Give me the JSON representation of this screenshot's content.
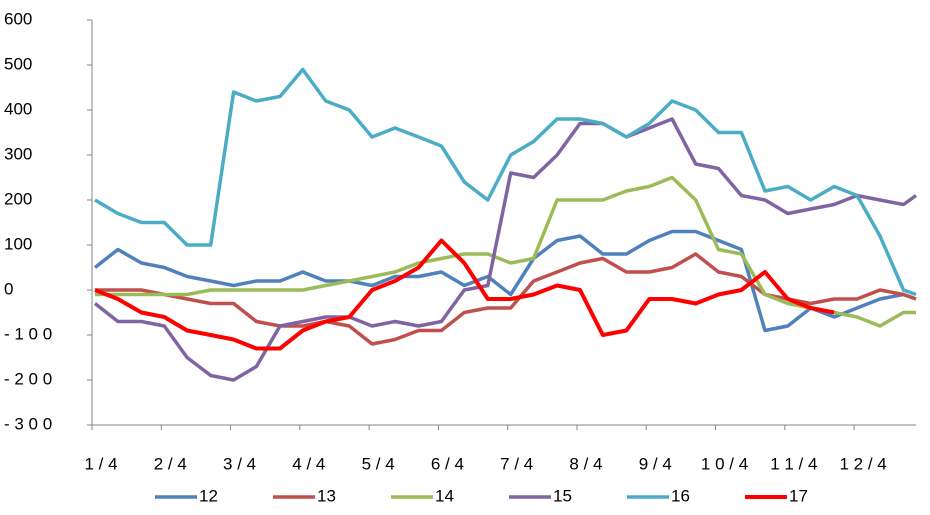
{
  "chart_data": {
    "type": "line",
    "x": [
      1,
      1.33,
      1.67,
      2,
      2.33,
      2.67,
      3,
      3.33,
      3.67,
      4,
      4.33,
      4.67,
      5,
      5.33,
      5.67,
      6,
      6.33,
      6.67,
      7,
      7.33,
      7.67,
      8,
      8.33,
      8.67,
      9,
      9.33,
      9.67,
      10,
      10.33,
      10.67,
      11,
      11.33,
      11.67,
      12,
      12.33,
      12.67,
      12.85
    ],
    "xlim": [
      1,
      12.85
    ],
    "xticks": [
      {
        "value": 1,
        "label": "1 / 4"
      },
      {
        "value": 2,
        "label": "2 / 4"
      },
      {
        "value": 3,
        "label": "3 / 4"
      },
      {
        "value": 4,
        "label": "4 / 4"
      },
      {
        "value": 5,
        "label": "5 / 4"
      },
      {
        "value": 6,
        "label": "6 / 4"
      },
      {
        "value": 7,
        "label": "7 / 4"
      },
      {
        "value": 8,
        "label": "8 / 4"
      },
      {
        "value": 9,
        "label": "9 / 4"
      },
      {
        "value": 10,
        "label": "1 0 / 4"
      },
      {
        "value": 11,
        "label": "1 1 / 4"
      },
      {
        "value": 12,
        "label": "1 2 / 4"
      }
    ],
    "ylim": [
      -300,
      600
    ],
    "yticks": [
      {
        "value": -300,
        "label": "- 3 0 0"
      },
      {
        "value": -200,
        "label": "- 2 0 0"
      },
      {
        "value": -100,
        "label": "- 1 0 0"
      },
      0,
      100,
      200,
      300,
      400,
      500,
      600
    ],
    "series": [
      {
        "name": "12",
        "color": "#4f81bd",
        "values": [
          50,
          90,
          60,
          50,
          30,
          20,
          10,
          20,
          20,
          40,
          20,
          20,
          10,
          30,
          30,
          40,
          10,
          30,
          -10,
          70,
          110,
          120,
          80,
          80,
          110,
          130,
          130,
          110,
          90,
          -90,
          -80,
          -40,
          -60,
          -40,
          -20,
          -10,
          -20
        ]
      },
      {
        "name": "13",
        "color": "#c0504d",
        "values": [
          0,
          0,
          0,
          -10,
          -20,
          -30,
          -30,
          -70,
          -80,
          -80,
          -70,
          -80,
          -120,
          -110,
          -90,
          -90,
          -50,
          -40,
          -40,
          20,
          40,
          60,
          70,
          40,
          40,
          50,
          80,
          40,
          30,
          -10,
          -20,
          -30,
          -20,
          -20,
          0,
          -10,
          -20
        ]
      },
      {
        "name": "14",
        "color": "#9bbb59",
        "values": [
          -10,
          -10,
          -10,
          -10,
          -10,
          0,
          0,
          0,
          0,
          0,
          10,
          20,
          30,
          40,
          60,
          70,
          80,
          80,
          60,
          70,
          200,
          200,
          200,
          220,
          230,
          250,
          200,
          90,
          80,
          -10,
          -30,
          -40,
          -50,
          -60,
          -80,
          -50,
          -50
        ]
      },
      {
        "name": "15",
        "color": "#8064a2",
        "values": [
          -30,
          -70,
          -70,
          -80,
          -150,
          -190,
          -200,
          -170,
          -80,
          -70,
          -60,
          -60,
          -80,
          -70,
          -80,
          -70,
          0,
          10,
          260,
          250,
          300,
          370,
          370,
          340,
          360,
          380,
          280,
          270,
          210,
          200,
          170,
          180,
          190,
          210,
          200,
          190,
          210
        ]
      },
      {
        "name": "16",
        "color": "#4bacc6",
        "values": [
          200,
          170,
          150,
          150,
          100,
          100,
          440,
          420,
          430,
          490,
          420,
          400,
          340,
          360,
          340,
          320,
          240,
          200,
          300,
          330,
          380,
          380,
          370,
          340,
          370,
          420,
          400,
          350,
          350,
          220,
          230,
          200,
          230,
          210,
          120,
          0,
          -10
        ]
      },
      {
        "name": "17",
        "color": "#ff0000",
        "values": [
          0,
          -20,
          -50,
          -60,
          -90,
          -100,
          -110,
          -130,
          -130,
          -90,
          -70,
          -60,
          0,
          20,
          50,
          110,
          60,
          -20,
          -20,
          -10,
          10,
          0,
          -100,
          -90,
          -20,
          -20,
          -30,
          -10,
          0,
          40,
          -20,
          -40,
          -50,
          null,
          null,
          null,
          null
        ]
      }
    ]
  }
}
